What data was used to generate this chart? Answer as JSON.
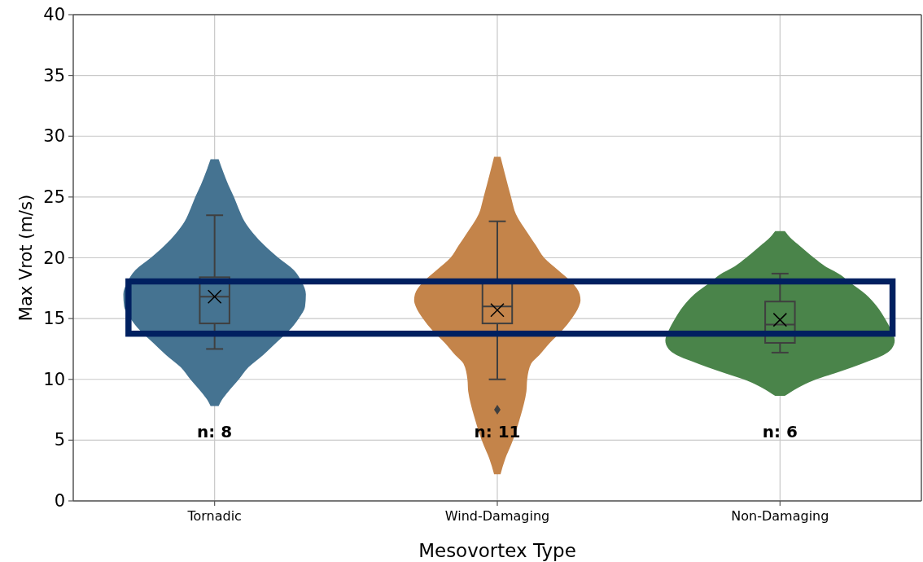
{
  "chart_data": {
    "type": "box",
    "xlabel": "Mesovortex Type",
    "ylabel": "Max Vrot (m/s)",
    "categories": [
      "Tornadic",
      "Wind-Damaging",
      "Non-Damaging"
    ],
    "boxes": [
      {
        "low": 12.5,
        "q1": 14.6,
        "median": 16.8,
        "q3": 18.4,
        "high": 23.5,
        "mean": 16.8
      },
      {
        "low": 10,
        "q1": 14.6,
        "median": 16,
        "q3": 17.9,
        "high": 23,
        "mean": 15.7,
        "outliers": [
          7.5
        ]
      },
      {
        "low": 12.2,
        "q1": 13,
        "median": 14.5,
        "q3": 16.4,
        "high": 18.7,
        "mean": 14.9
      }
    ],
    "colors": [
      "#457391",
      "#c4844a",
      "#4a844a"
    ],
    "ylim": [
      0,
      40
    ],
    "yticks": [
      0,
      5,
      10,
      15,
      20,
      25,
      30,
      35,
      40
    ],
    "grid": true,
    "annotations": [
      "n: 8",
      "n: 11",
      "n: 6"
    ]
  }
}
